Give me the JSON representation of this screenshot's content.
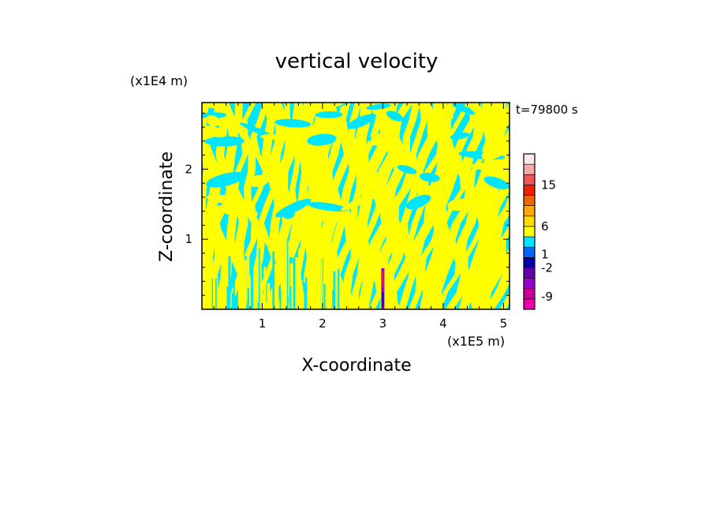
{
  "chart_data": {
    "type": "heatmap",
    "title": "vertical velocity",
    "xlabel": "X-coordinate",
    "ylabel": "Z-coordinate",
    "x_unit": "(x1E5 m)",
    "y_unit": "(x1E4 m)",
    "time_label": "t=79800 s",
    "xlim": [
      0,
      5.1
    ],
    "ylim": [
      0,
      2.95
    ],
    "x_ticks": [
      1,
      2,
      3,
      4,
      5
    ],
    "y_ticks": [
      1,
      2
    ],
    "background_colors": {
      "positive_small": "#ffff00",
      "negative_small": "#00e5ff"
    },
    "colorbar": {
      "tick_labels": [
        "15",
        "6",
        "1",
        "-2",
        "-9"
      ],
      "tick_values": [
        15,
        6,
        1,
        -2,
        -9
      ],
      "levels": [
        {
          "color": "#ee00aa"
        },
        {
          "color": "#cc0099"
        },
        {
          "color": "#9900cc"
        },
        {
          "color": "#6600aa"
        },
        {
          "color": "#0000aa"
        },
        {
          "color": "#0066ff"
        },
        {
          "color": "#00e5ff"
        },
        {
          "color": "#ffff00"
        },
        {
          "color": "#ffdd00"
        },
        {
          "color": "#ffaa00"
        },
        {
          "color": "#ee6600"
        },
        {
          "color": "#ee2200"
        },
        {
          "color": "#ee5555"
        },
        {
          "color": "#f4aaaa"
        },
        {
          "color": "#fde8e8"
        }
      ]
    }
  }
}
